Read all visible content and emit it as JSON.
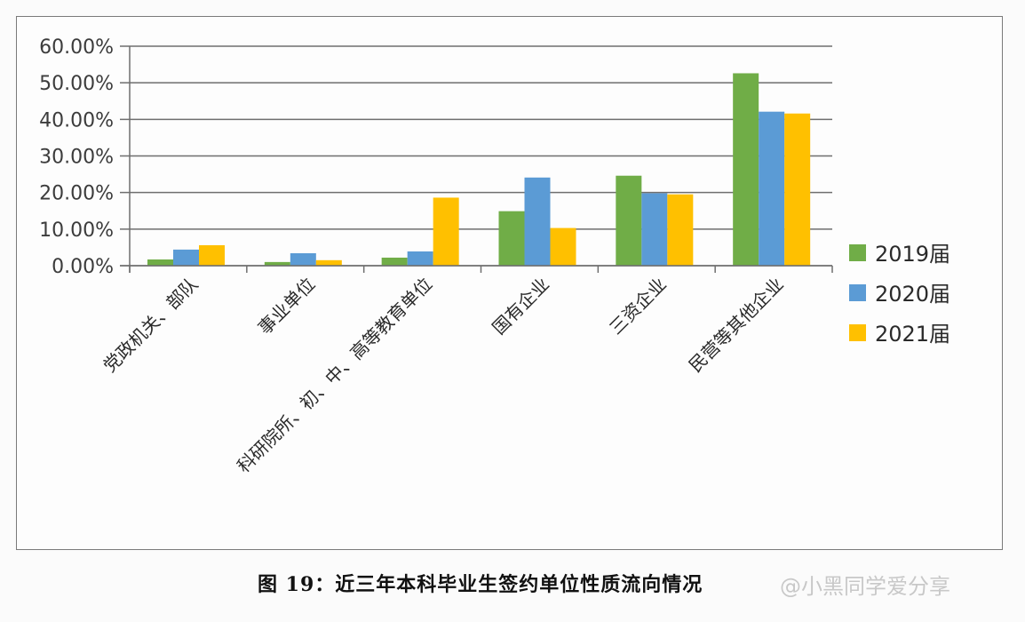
{
  "chart_data": {
    "type": "bar",
    "title": "",
    "caption": "图 19：近三年本科毕业生签约单位性质流向情况",
    "xlabel": "",
    "ylabel": "",
    "ylim": [
      0,
      60
    ],
    "yticks": [
      "0.00%",
      "10.00%",
      "20.00%",
      "30.00%",
      "40.00%",
      "50.00%",
      "60.00%"
    ],
    "grid": true,
    "legend_position": "right",
    "categories": [
      "党政机关、部队",
      "事业单位",
      "科研院所、初、中、高等教育单位",
      "国有企业",
      "三资企业",
      "民营等其他企业"
    ],
    "series": [
      {
        "name": "2019届",
        "color": "#70AD47",
        "values": [
          1.7,
          1.0,
          2.2,
          14.9,
          24.6,
          52.6
        ]
      },
      {
        "name": "2020届",
        "color": "#5B9BD5",
        "values": [
          4.4,
          3.4,
          3.9,
          24.1,
          19.8,
          42.1
        ]
      },
      {
        "name": "2021届",
        "color": "#FFC000",
        "values": [
          5.6,
          1.5,
          18.6,
          10.3,
          19.5,
          41.6
        ]
      }
    ]
  },
  "caption": "图 19：近三年本科毕业生签约单位性质流向情况",
  "watermark": "@小黑同学爱分享"
}
